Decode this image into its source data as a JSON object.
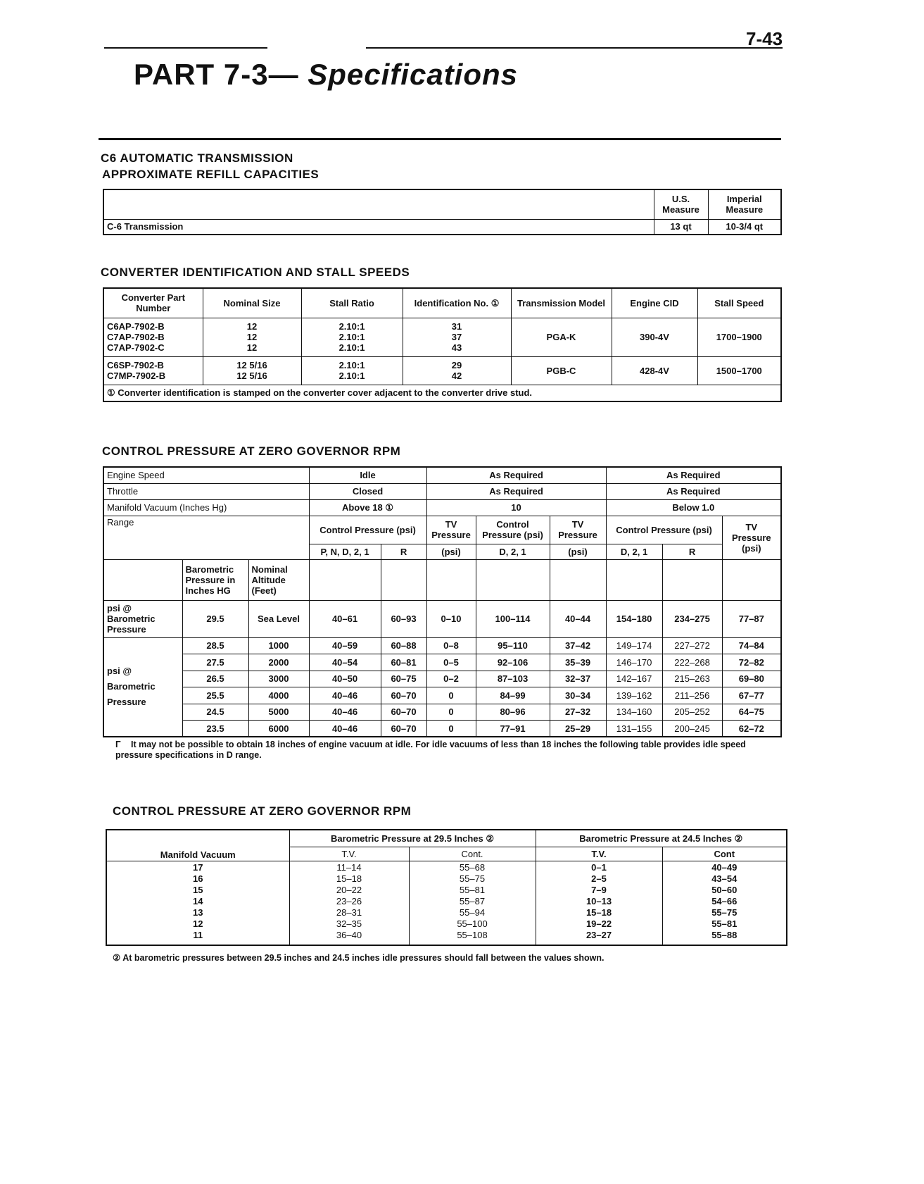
{
  "page_number": "7-43",
  "title": {
    "part": "PART 7-3—",
    "name": "Specifications"
  },
  "refill": {
    "heading1": "C6 AUTOMATIC TRANSMISSION",
    "heading2": "APPROXIMATE REFILL CAPACITIES",
    "headers": [
      "U.S. Measure",
      "Imperial Measure"
    ],
    "row": {
      "label": "C-6 Transmission",
      "us": "13 qt",
      "imperial": "10-3/4 qt"
    }
  },
  "converter": {
    "heading": "CONVERTER IDENTIFICATION AND STALL SPEEDS",
    "headers": [
      "Converter Part Number",
      "Nominal Size",
      "Stall Ratio",
      "Identification No. ①",
      "Transmission Model",
      "Engine CID",
      "Stall Speed"
    ],
    "groups": [
      {
        "parts": [
          "C6AP-7902-B",
          "C7AP-7902-B",
          "C7AP-7902-C"
        ],
        "sizes": [
          "12",
          "12",
          "12"
        ],
        "ratios": [
          "2.10:1",
          "2.10:1",
          "2.10:1"
        ],
        "ids": [
          "31",
          "37",
          "43"
        ],
        "model": "PGA-K",
        "cid": "390-4V",
        "speed": "1700–1900"
      },
      {
        "parts": [
          "C6SP-7902-B",
          "C7MP-7902-B"
        ],
        "sizes": [
          "12 5/16",
          "12 5/16"
        ],
        "ratios": [
          "2.10:1",
          "2.10:1"
        ],
        "ids": [
          "29",
          "42"
        ],
        "model": "PGB-C",
        "cid": "428-4V",
        "speed": "1500–1700"
      }
    ],
    "footnote": "① Converter identification is stamped on the converter cover adjacent to the converter drive stud."
  },
  "control1": {
    "heading": "CONTROL PRESSURE AT ZERO GOVERNOR RPM",
    "engine_speed": {
      "label": "Engine Speed",
      "values": [
        "Idle",
        "As Required",
        "As Required"
      ]
    },
    "throttle": {
      "label": "Throttle",
      "values": [
        "Closed",
        "As Required",
        "As Required"
      ]
    },
    "vacuum": {
      "label": "Manifold Vacuum (Inches Hg)",
      "values": [
        "Above 18 ①",
        "10",
        "Below 1.0"
      ]
    },
    "range": {
      "label": "Range",
      "control_pressure": "Control Pressure (psi)",
      "tv_pressure": "TV Pressure",
      "psi": "(psi)",
      "tv_pressure_psi": "TV Pressure (psi)",
      "sub": [
        "P, N, D, 2, 1",
        "R",
        "D, 2, 1",
        "D, 2, 1",
        "R"
      ]
    },
    "baro_header": "Barometric Pressure in Inches HG",
    "alt_header": "Nominal Altitude (Feet)",
    "row_label": "psi @ Barometric Pressure",
    "sea_row": [
      "29.5",
      "Sea Level",
      "40–61",
      "60–93",
      "0–10",
      "100–114",
      "40–44",
      "154–180",
      "234–275",
      "77–87"
    ],
    "rows": [
      [
        "28.5",
        "1000",
        "40–59",
        "60–88",
        "0–8",
        "95–110",
        "37–42",
        "149–174",
        "227–272",
        "74–84"
      ],
      [
        "27.5",
        "2000",
        "40–54",
        "60–81",
        "0–5",
        "92–106",
        "35–39",
        "146–170",
        "222–268",
        "72–82"
      ],
      [
        "26.5",
        "3000",
        "40–50",
        "60–75",
        "0–2",
        "87–103",
        "32–37",
        "142–167",
        "215–263",
        "69–80"
      ],
      [
        "25.5",
        "4000",
        "40–46",
        "60–70",
        "0",
        "84–99",
        "30–34",
        "139–162",
        "211–256",
        "67–77"
      ],
      [
        "24.5",
        "5000",
        "40–46",
        "60–70",
        "0",
        "80–96",
        "27–32",
        "134–160",
        "205–252",
        "64–75"
      ],
      [
        "23.5",
        "6000",
        "40–46",
        "60–70",
        "0",
        "77–91",
        "25–29",
        "131–155",
        "200–245",
        "62–72"
      ]
    ],
    "footnote": "It may not be possible to obtain 18 inches of engine vacuum at idle. For idle vacuums of less than 18 inches the following table provides idle speed pressure specifications in D range."
  },
  "control2": {
    "heading": "CONTROL PRESSURE AT ZERO GOVERNOR RPM",
    "col_label": "Manifold Vacuum",
    "group1": "Barometric Pressure at 29.5 Inches ②",
    "group2": "Barometric Pressure at 24.5 Inches ②",
    "sub1": [
      "T.V.",
      "Cont."
    ],
    "sub2": [
      "T.V.",
      "Cont"
    ],
    "vacuum": [
      "17",
      "16",
      "15",
      "14",
      "13",
      "12",
      "11"
    ],
    "tv1": [
      "11–14",
      "15–18",
      "20–22",
      "23–26",
      "28–31",
      "32–35",
      "36–40"
    ],
    "cont1": [
      "55–68",
      "55–75",
      "55–81",
      "55–87",
      "55–94",
      "55–100",
      "55–108"
    ],
    "tv2": [
      "0–1",
      "2–5",
      "7–9",
      "10–13",
      "15–18",
      "19–22",
      "23–27"
    ],
    "cont2": [
      "40–49",
      "43–54",
      "50–60",
      "54–66",
      "55–75",
      "55–81",
      "55–88"
    ],
    "footnote": "② At barometric pressures between 29.5 inches and 24.5 inches idle pressures should fall between the values shown."
  }
}
